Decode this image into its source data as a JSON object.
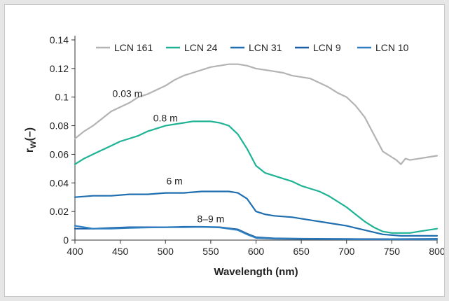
{
  "chart_data": {
    "type": "line",
    "xlabel": "Wavelength (nm)",
    "ylabel_main": "r",
    "ylabel_sub": "W",
    "ylabel_suffix": "(–)",
    "xlim": [
      400,
      800
    ],
    "ylim": [
      0,
      0.14
    ],
    "xticks": [
      400,
      450,
      500,
      550,
      600,
      650,
      700,
      750,
      800
    ],
    "yticks": [
      0,
      0.02,
      0.04,
      0.06,
      0.08,
      0.1,
      0.12,
      0.14
    ],
    "ytick_labels": [
      "0",
      "0.02",
      "0.04",
      "0.06",
      "0.08",
      "0.1",
      "0.12",
      "0.14"
    ],
    "grid": false,
    "legend_position": "top",
    "series": [
      {
        "name": "LCN 161",
        "color": "#b3b3b3",
        "x": [
          400,
          410,
          420,
          430,
          440,
          450,
          460,
          470,
          480,
          490,
          500,
          510,
          520,
          530,
          540,
          550,
          560,
          570,
          580,
          590,
          600,
          610,
          620,
          630,
          640,
          650,
          660,
          670,
          680,
          690,
          700,
          710,
          720,
          730,
          740,
          750,
          755,
          760,
          765,
          770,
          780,
          790,
          800
        ],
        "y": [
          0.071,
          0.076,
          0.08,
          0.085,
          0.09,
          0.093,
          0.096,
          0.1,
          0.102,
          0.105,
          0.108,
          0.112,
          0.115,
          0.117,
          0.119,
          0.121,
          0.122,
          0.123,
          0.123,
          0.122,
          0.12,
          0.119,
          0.118,
          0.117,
          0.115,
          0.114,
          0.113,
          0.11,
          0.107,
          0.103,
          0.1,
          0.094,
          0.086,
          0.074,
          0.062,
          0.058,
          0.056,
          0.053,
          0.057,
          0.056,
          0.057,
          0.058,
          0.059
        ]
      },
      {
        "name": "LCN 24",
        "color": "#1db394",
        "x": [
          400,
          410,
          420,
          430,
          440,
          450,
          460,
          470,
          480,
          490,
          500,
          510,
          520,
          530,
          540,
          550,
          560,
          570,
          580,
          590,
          600,
          610,
          620,
          630,
          640,
          650,
          660,
          670,
          680,
          690,
          700,
          710,
          720,
          730,
          740,
          750,
          760,
          770,
          780,
          790,
          800
        ],
        "y": [
          0.053,
          0.057,
          0.06,
          0.063,
          0.066,
          0.069,
          0.071,
          0.073,
          0.076,
          0.078,
          0.08,
          0.081,
          0.082,
          0.083,
          0.083,
          0.083,
          0.082,
          0.08,
          0.074,
          0.064,
          0.052,
          0.047,
          0.045,
          0.043,
          0.041,
          0.038,
          0.036,
          0.034,
          0.031,
          0.027,
          0.023,
          0.018,
          0.013,
          0.009,
          0.006,
          0.005,
          0.005,
          0.005,
          0.006,
          0.007,
          0.008
        ]
      },
      {
        "name": "LCN 31",
        "color": "#1f6eb0",
        "x": [
          400,
          420,
          440,
          460,
          480,
          500,
          520,
          540,
          560,
          570,
          580,
          590,
          600,
          610,
          620,
          640,
          660,
          680,
          700,
          720,
          740,
          760,
          780,
          800
        ],
        "y": [
          0.03,
          0.031,
          0.031,
          0.032,
          0.032,
          0.033,
          0.033,
          0.034,
          0.034,
          0.034,
          0.033,
          0.029,
          0.02,
          0.018,
          0.017,
          0.016,
          0.014,
          0.012,
          0.01,
          0.007,
          0.004,
          0.003,
          0.003,
          0.003
        ]
      },
      {
        "name": "LCN 9",
        "color": "#1a5ea5",
        "x": [
          400,
          420,
          440,
          460,
          480,
          500,
          520,
          540,
          560,
          580,
          590,
          600,
          620,
          650,
          700,
          750,
          800
        ],
        "y": [
          0.008,
          0.008,
          0.0085,
          0.009,
          0.009,
          0.009,
          0.0093,
          0.0093,
          0.009,
          0.0075,
          0.0045,
          0.002,
          0.0012,
          0.001,
          0.0008,
          0.0007,
          0.0009
        ]
      },
      {
        "name": "LCN 10",
        "color": "#2f7fc0",
        "x": [
          400,
          410,
          420,
          440,
          460,
          480,
          500,
          520,
          540,
          560,
          580,
          590,
          600,
          620,
          650,
          700,
          750,
          800
        ],
        "y": [
          0.01,
          0.009,
          0.008,
          0.008,
          0.0085,
          0.0088,
          0.009,
          0.009,
          0.0092,
          0.0088,
          0.007,
          0.004,
          0.0015,
          0.001,
          0.0008,
          0.0006,
          0.0005,
          0.0005
        ]
      }
    ],
    "annotations": [
      {
        "text": "0.03 m",
        "x": 458,
        "y": 0.1
      },
      {
        "text": "0.8 m",
        "x": 500,
        "y": 0.083
      },
      {
        "text": "6 m",
        "x": 510,
        "y": 0.039
      },
      {
        "text": "8–9 m",
        "x": 550,
        "y": 0.0125
      }
    ]
  }
}
